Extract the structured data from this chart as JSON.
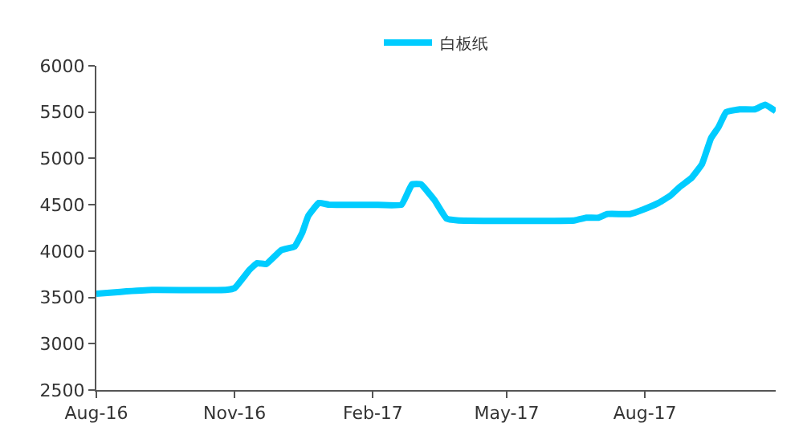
{
  "chart_data": {
    "type": "line",
    "legend": "top",
    "marker": "none",
    "line_style": "solid",
    "xlim": [
      "2016-08-01",
      "2017-10-27"
    ],
    "xticks": [
      {
        "value": "2016-08-01",
        "label": "Aug-16"
      },
      {
        "value": "2016-11-01",
        "label": "Nov-16"
      },
      {
        "value": "2017-02-01",
        "label": "Feb-17"
      },
      {
        "value": "2017-05-01",
        "label": "May-17"
      },
      {
        "value": "2017-08-01",
        "label": "Aug-17"
      }
    ],
    "ylim": [
      2500,
      6000
    ],
    "yticks": [
      2500,
      3000,
      3500,
      4000,
      4500,
      5000,
      5500,
      6000
    ],
    "x": [
      "2016-08-01",
      "2016-08-17",
      "2016-09-07",
      "2016-10-26",
      "2016-11-01",
      "2016-11-11",
      "2016-11-16",
      "2016-11-22",
      "2016-12-02",
      "2016-12-11",
      "2016-12-16",
      "2016-12-20",
      "2016-12-27",
      "2017-01-03",
      "2017-02-01",
      "2017-02-20",
      "2017-02-27",
      "2017-03-05",
      "2017-03-14",
      "2017-03-22",
      "2017-03-30",
      "2017-06-15",
      "2017-06-23",
      "2017-07-01",
      "2017-07-07",
      "2017-07-22",
      "2017-07-31",
      "2017-08-10",
      "2017-08-18",
      "2017-08-24",
      "2017-09-01",
      "2017-09-08",
      "2017-09-14",
      "2017-09-19",
      "2017-09-24",
      "2017-10-03",
      "2017-10-13",
      "2017-10-20",
      "2017-10-27"
    ],
    "series": [
      {
        "name": "白板纸",
        "color": "#00ccff",
        "values": [
          3540,
          3560,
          3580,
          3580,
          3600,
          3800,
          3870,
          3860,
          4010,
          4050,
          4200,
          4380,
          4520,
          4500,
          4500,
          4500,
          4720,
          4720,
          4550,
          4350,
          4330,
          4330,
          4360,
          4360,
          4400,
          4400,
          4450,
          4520,
          4600,
          4690,
          4790,
          4940,
          5220,
          5340,
          5500,
          5530,
          5530,
          5580,
          5510
        ]
      }
    ]
  }
}
